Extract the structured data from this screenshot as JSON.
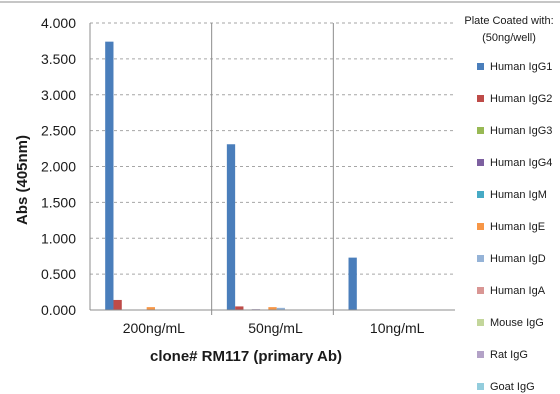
{
  "chart_data": {
    "type": "bar",
    "categories": [
      "200ng/mL",
      "50ng/mL",
      "10ng/mL"
    ],
    "xlabel": "clone# RM117 (primary Ab)",
    "ylabel": "Abs (405nm)",
    "ylim": [
      0,
      4.0
    ],
    "yticks": [
      "0.000",
      "0.500",
      "1.000",
      "1.500",
      "2.000",
      "2.500",
      "3.000",
      "3.500",
      "4.000"
    ],
    "ytick_values": [
      0,
      0.5,
      1.0,
      1.5,
      2.0,
      2.5,
      3.0,
      3.5,
      4.0
    ],
    "grid": "horizontal dashed",
    "legend_position": "right",
    "legend_title_lines": [
      "Plate Coated with:",
      "(50ng/well)"
    ],
    "series": [
      {
        "name": "Human IgG1",
        "color": "#4a7ebb",
        "values": [
          3.74,
          2.31,
          0.73
        ]
      },
      {
        "name": "Human IgG2",
        "color": "#be4b48",
        "values": [
          0.14,
          0.05,
          0.0
        ]
      },
      {
        "name": "Human IgG3",
        "color": "#98b954",
        "values": [
          0.0,
          0.0,
          0.0
        ]
      },
      {
        "name": "Human IgG4",
        "color": "#7d60a0",
        "values": [
          0.0,
          0.01,
          0.0
        ]
      },
      {
        "name": "Human IgM",
        "color": "#46aac5",
        "values": [
          0.0,
          0.0,
          0.0
        ]
      },
      {
        "name": "Human IgE",
        "color": "#f79646",
        "values": [
          0.04,
          0.04,
          0.0
        ]
      },
      {
        "name": "Human IgD",
        "color": "#95b3d7",
        "values": [
          0.0,
          0.03,
          0.0
        ]
      },
      {
        "name": "Human IgA",
        "color": "#d99694",
        "values": [
          0.0,
          0.0,
          0.0
        ]
      },
      {
        "name": "Mouse IgG",
        "color": "#c3d69b",
        "values": [
          0.0,
          0.0,
          0.0
        ]
      },
      {
        "name": "Rat IgG",
        "color": "#b3a2c7",
        "values": [
          0.0,
          0.0,
          0.0
        ]
      },
      {
        "name": "Goat IgG",
        "color": "#93cddd",
        "values": [
          0.0,
          0.0,
          0.0
        ]
      }
    ]
  }
}
